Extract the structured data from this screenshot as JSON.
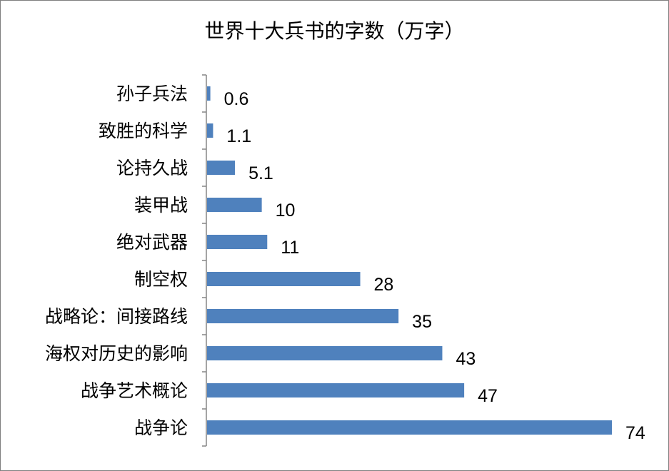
{
  "chart_data": {
    "type": "bar",
    "orientation": "horizontal",
    "title": "世界十大兵书的字数（万字）",
    "xlabel": "",
    "ylabel": "",
    "categories": [
      "孙子兵法",
      "致胜的科学",
      "论持久战",
      "装甲战",
      "绝对武器",
      "制空权",
      "战略论：间接路线",
      "海权对历史的影响",
      "战争艺术概论",
      "战争论"
    ],
    "values": [
      0.6,
      1.1,
      5.1,
      10,
      11,
      28,
      35,
      43,
      47,
      74
    ],
    "value_labels": [
      "0.6",
      "1.1",
      "5.1",
      "10",
      "11",
      "28",
      "35",
      "43",
      "47",
      "74"
    ],
    "xlim": [
      0,
      74
    ],
    "grid": false,
    "legend": "none",
    "colors": {
      "bar": "#4F81BD",
      "axis": "#868686"
    }
  }
}
